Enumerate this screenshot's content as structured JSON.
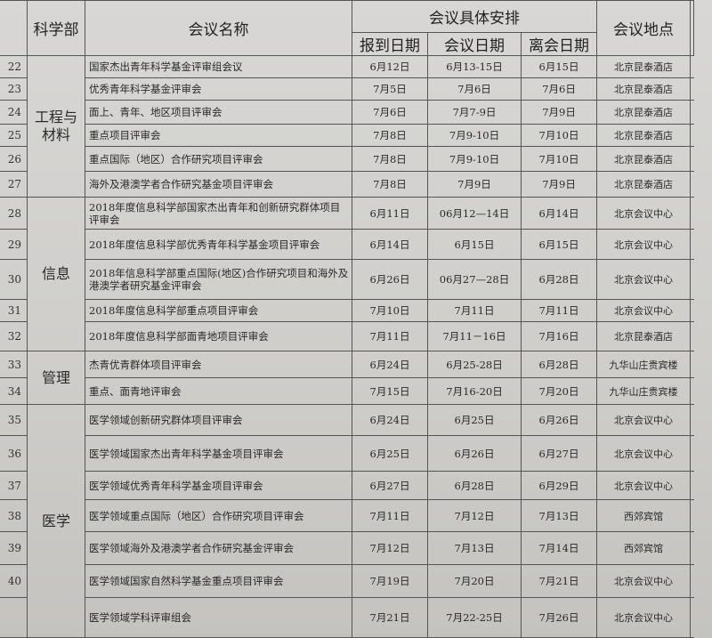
{
  "header": {
    "dept": "科学部",
    "name": "会议名称",
    "schedule": "会议具体安排",
    "register": "报到日期",
    "meeting": "会议日期",
    "leave": "离会日期",
    "location": "会议地点"
  },
  "groups": [
    {
      "dept": "工程与材料",
      "rows": [
        {
          "num": "22",
          "name": "国家杰出青年科学基金评审组会议",
          "register": "6月12日",
          "meeting": "6月13-15日",
          "leave": "6月15日",
          "location": "北京昆泰酒店"
        },
        {
          "num": "23",
          "name": "优秀青年科学基金评审会",
          "register": "7月5日",
          "meeting": "7月6日",
          "leave": "7月6日",
          "location": "北京昆泰酒店"
        },
        {
          "num": "24",
          "name": "面上、青年、地区项目评审会",
          "register": "7月6日",
          "meeting": "7月7-9日",
          "leave": "7月9日",
          "location": "北京昆泰酒店"
        },
        {
          "num": "25",
          "name": "重点项目评审会",
          "register": "7月8日",
          "meeting": "7月9-10日",
          "leave": "7月10日",
          "location": "北京昆泰酒店"
        },
        {
          "num": "26",
          "name": "重点国际（地区）合作研究项目评审会",
          "register": "7月8日",
          "meeting": "7月9-10日",
          "leave": "7月10日",
          "location": "北京昆泰酒店"
        },
        {
          "num": "27",
          "name": "海外及港澳学者合作研究基金项目评审会",
          "register": "7月8日",
          "meeting": "7月9日",
          "leave": "7月9日",
          "location": "北京昆泰酒店"
        }
      ]
    },
    {
      "dept": "信息",
      "rows": [
        {
          "num": "28",
          "name": "2018年度信息科学部国家杰出青年和创新研究群体项目评审会",
          "register": "6月11日",
          "meeting": "06月12—14日",
          "leave": "6月14日",
          "location": "北京会议中心"
        },
        {
          "num": "29",
          "name": "2018年度信息科学部优秀青年科学基金项目评审会",
          "register": "6月14日",
          "meeting": "6月15日",
          "leave": "6月15日",
          "location": "北京会议中心"
        },
        {
          "num": "30",
          "name": "2018年信息科学部重点国际(地区)合作研究项目和海外及港澳学者研究基金评审会",
          "register": "6月26日",
          "meeting": "06月27—28日",
          "leave": "6月28日",
          "location": "北京会议中心"
        },
        {
          "num": "31",
          "name": "2018年度信息科学部重点项目评审会",
          "register": "7月10日",
          "meeting": "7月11日",
          "leave": "7月11日",
          "location": "北京会议中心"
        },
        {
          "num": "32",
          "name": "2018年度信息科学部面青地项目评审会",
          "register": "7月11日",
          "meeting": "7月11－16日",
          "leave": "7月16日",
          "location": "北京昆泰酒店"
        }
      ]
    },
    {
      "dept": "管理",
      "rows": [
        {
          "num": "33",
          "name": "杰青优青群体项目评审会",
          "register": "6月24日",
          "meeting": "6月25-28日",
          "leave": "6月28日",
          "location": "九华山庄贵宾楼"
        },
        {
          "num": "34",
          "name": "重点、面青地评审会",
          "register": "7月15日",
          "meeting": "7月16-20日",
          "leave": "7月20日",
          "location": "九华山庄贵宾楼"
        }
      ]
    },
    {
      "dept": "医学",
      "rows": [
        {
          "num": "35",
          "name": "医学领域创新研究群体项目评审会",
          "register": "6月24日",
          "meeting": "6月25日",
          "leave": "6月26日",
          "location": "北京会议中心"
        },
        {
          "num": "36",
          "name": "医学领域国家杰出青年科学基金项目评审会",
          "register": "6月25日",
          "meeting": "6月26日",
          "leave": "6月27日",
          "location": "北京会议中心"
        },
        {
          "num": "37",
          "name": "医学领域优秀青年科学基金项目评审会",
          "register": "6月27日",
          "meeting": "6月28日",
          "leave": "6月29日",
          "location": "北京会议中心"
        },
        {
          "num": "38",
          "name": "医学领域重点国际（地区）合作研究项目评审会",
          "register": "7月11日",
          "meeting": "7月12日",
          "leave": "7月13日",
          "location": "西郊宾馆"
        },
        {
          "num": "39",
          "name": "医学领域海外及港澳学者合作研究基金评审会",
          "register": "7月12日",
          "meeting": "7月13日",
          "leave": "7月14日",
          "location": "西郊宾馆"
        },
        {
          "num": "40",
          "name": "医学领域国家自然科学基金重点项目评审会",
          "register": "7月19日",
          "meeting": "7月20日",
          "leave": "7月21日",
          "location": "北京会议中心"
        },
        {
          "num": "",
          "name": "医学领域学科评审组会",
          "register": "7月21日",
          "meeting": "7月22-25日",
          "leave": "7月26日",
          "location": "北京会议中心"
        }
      ]
    }
  ]
}
